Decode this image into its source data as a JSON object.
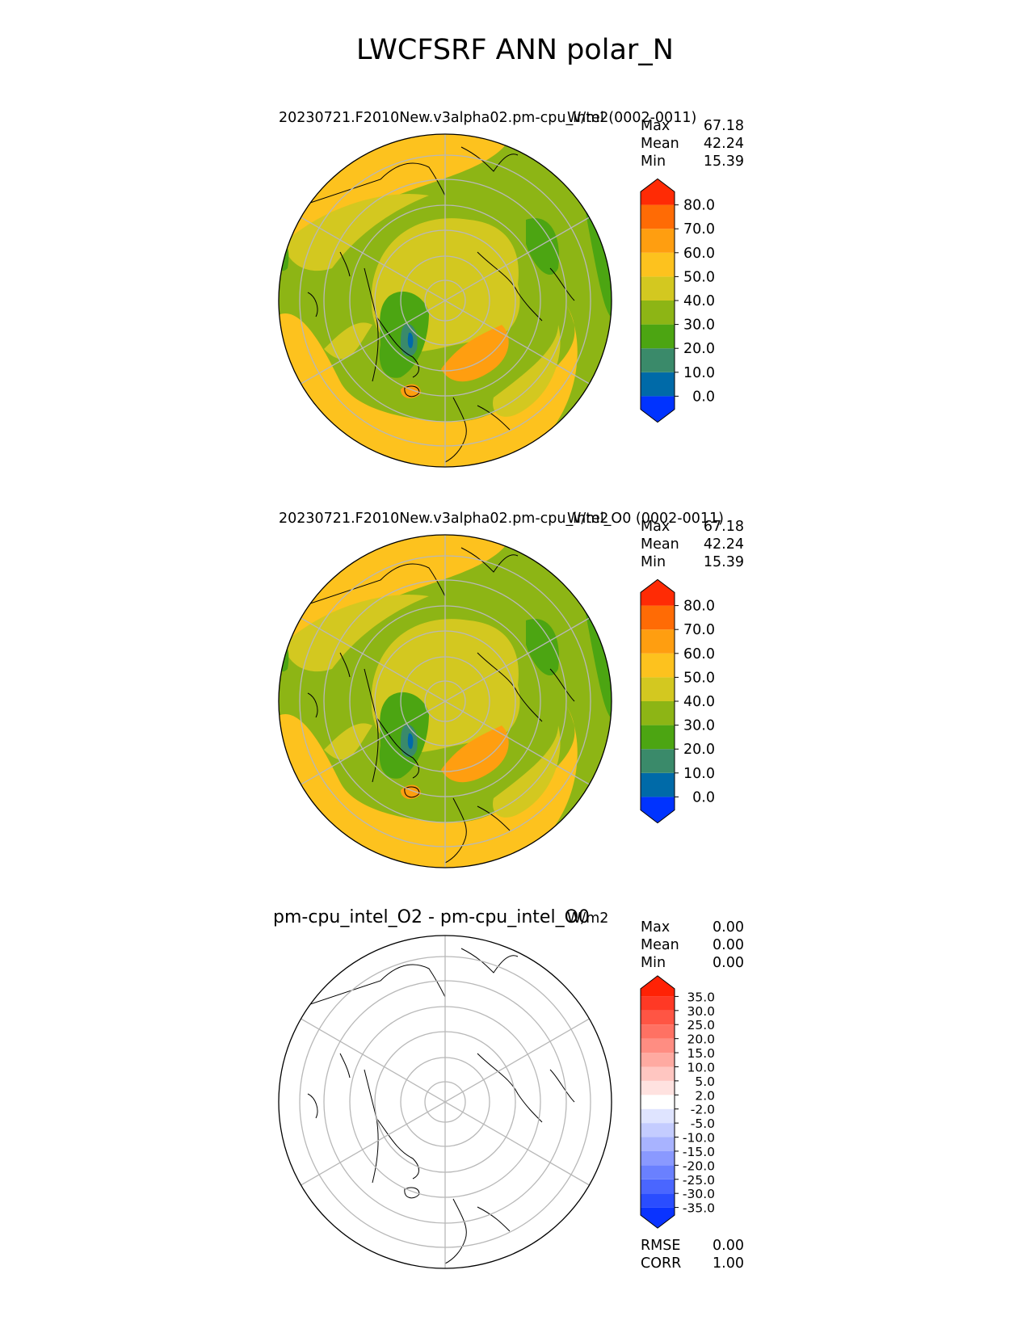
{
  "figure": {
    "title": "LWCFSRF ANN polar_N"
  },
  "panels": [
    {
      "title": "20230721.F2010New.v3alpha02.pm-cpu_intel (0002-0011)",
      "units": "W/m2",
      "stats": [
        {
          "label": "Max",
          "value": "67.18"
        },
        {
          "label": "Mean",
          "value": "42.24"
        },
        {
          "label": "Min",
          "value": "15.39"
        }
      ],
      "colorbar": {
        "colors": [
          "#0033ff",
          "#006aa8",
          "#3a8a6a",
          "#4ca512",
          "#8db515",
          "#d3c820",
          "#fdc21e",
          "#ff9e10",
          "#ff6b05",
          "#ff2b05"
        ],
        "tick_labels": [
          "0.0",
          "10.0",
          "20.0",
          "30.0",
          "40.0",
          "50.0",
          "60.0",
          "70.0",
          "80.0"
        ],
        "extend": "both"
      }
    },
    {
      "title": "20230721.F2010New.v3alpha02.pm-cpu_intel_O0 (0002-0011)",
      "units": "W/m2",
      "stats": [
        {
          "label": "Max",
          "value": "67.18"
        },
        {
          "label": "Mean",
          "value": "42.24"
        },
        {
          "label": "Min",
          "value": "15.39"
        }
      ],
      "colorbar": {
        "colors": [
          "#0033ff",
          "#006aa8",
          "#3a8a6a",
          "#4ca512",
          "#8db515",
          "#d3c820",
          "#fdc21e",
          "#ff9e10",
          "#ff6b05",
          "#ff2b05"
        ],
        "tick_labels": [
          "0.0",
          "10.0",
          "20.0",
          "30.0",
          "40.0",
          "50.0",
          "60.0",
          "70.0",
          "80.0"
        ],
        "extend": "both"
      }
    },
    {
      "title": "pm-cpu_intel_O2 - pm-cpu_intel_O0",
      "units": "W/m2",
      "stats": [
        {
          "label": "Max",
          "value": "0.00"
        },
        {
          "label": "Mean",
          "value": "0.00"
        },
        {
          "label": "Min",
          "value": "0.00"
        }
      ],
      "metrics": [
        {
          "label": "RMSE",
          "value": "0.00"
        },
        {
          "label": "CORR",
          "value": "1.00"
        }
      ],
      "colorbar": {
        "colors": [
          "#0a33ff",
          "#2a4dff",
          "#4a66ff",
          "#6a80ff",
          "#8a99ff",
          "#a8b3ff",
          "#c4ccff",
          "#dfe4ff",
          "#ffffff",
          "#ffe2e0",
          "#ffc6c1",
          "#ffaaa1",
          "#ff8d82",
          "#ff7163",
          "#ff5544",
          "#ff3925",
          "#ff2205"
        ],
        "tick_labels": [
          "-35.0",
          "-30.0",
          "-25.0",
          "-20.0",
          "-15.0",
          "-10.0",
          "-5.0",
          "-2.0",
          "2.0",
          "5.0",
          "10.0",
          "15.0",
          "20.0",
          "25.0",
          "30.0",
          "35.0"
        ],
        "extend": "both"
      }
    }
  ],
  "chart_data": [
    {
      "type": "heatmap",
      "title": "20230721.F2010New.v3alpha02.pm-cpu_intel (0002-0011)",
      "projection": "north polar stereographic",
      "variable": "LWCFSRF",
      "season": "ANN",
      "units": "W/m2",
      "stats": {
        "max": 67.18,
        "mean": 42.24,
        "min": 15.39
      },
      "levels": [
        0,
        10,
        20,
        30,
        40,
        50,
        60,
        70,
        80
      ],
      "grid": true
    },
    {
      "type": "heatmap",
      "title": "20230721.F2010New.v3alpha02.pm-cpu_intel_O0 (0002-0011)",
      "projection": "north polar stereographic",
      "variable": "LWCFSRF",
      "season": "ANN",
      "units": "W/m2",
      "stats": {
        "max": 67.18,
        "mean": 42.24,
        "min": 15.39
      },
      "levels": [
        0,
        10,
        20,
        30,
        40,
        50,
        60,
        70,
        80
      ],
      "grid": true
    },
    {
      "type": "heatmap",
      "title": "pm-cpu_intel_O2 - pm-cpu_intel_O0",
      "projection": "north polar stereographic",
      "units": "W/m2",
      "stats": {
        "max": 0.0,
        "mean": 0.0,
        "min": 0.0
      },
      "metrics": {
        "rmse": 0.0,
        "corr": 1.0
      },
      "levels": [
        -35,
        -30,
        -25,
        -20,
        -15,
        -10,
        -5,
        -2,
        2,
        5,
        10,
        15,
        20,
        25,
        30,
        35
      ],
      "grid": true
    }
  ]
}
